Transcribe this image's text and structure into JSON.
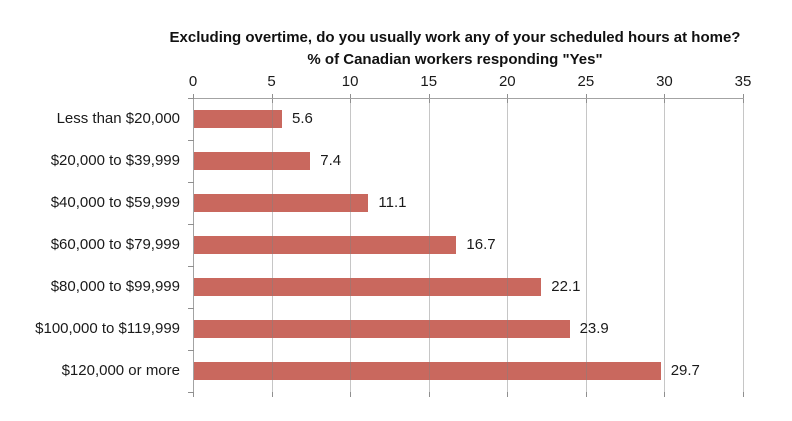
{
  "chart_data": {
    "type": "bar",
    "orientation": "horizontal",
    "title": "Excluding overtime, do you usually work any of your scheduled hours at home?",
    "subtitle": "% of Canadian workers responding \"Yes\"",
    "categories": [
      "Less than $20,000",
      "$20,000 to $39,999",
      "$40,000 to $59,999",
      "$60,000 to $79,999",
      "$80,000 to $99,999",
      "$100,000 to $119,999",
      "$120,000 or more"
    ],
    "values": [
      5.6,
      7.4,
      11.1,
      16.7,
      22.1,
      23.9,
      29.7
    ],
    "value_labels": [
      "5.6",
      "7.4",
      "11.1",
      "16.7",
      "22.1",
      "23.9",
      "29.7"
    ],
    "x_ticks": [
      0,
      5,
      10,
      15,
      20,
      25,
      30,
      35
    ],
    "xlim": [
      0,
      35
    ],
    "xlabel": "",
    "ylabel": "",
    "grid": true,
    "legend_position": "none",
    "value_axis_position": "top",
    "bar_color": "#c9685e",
    "gridline_color": "#b5b5b5",
    "axis_color": "#a3a3a3",
    "text_color": "#1a1a1a"
  }
}
